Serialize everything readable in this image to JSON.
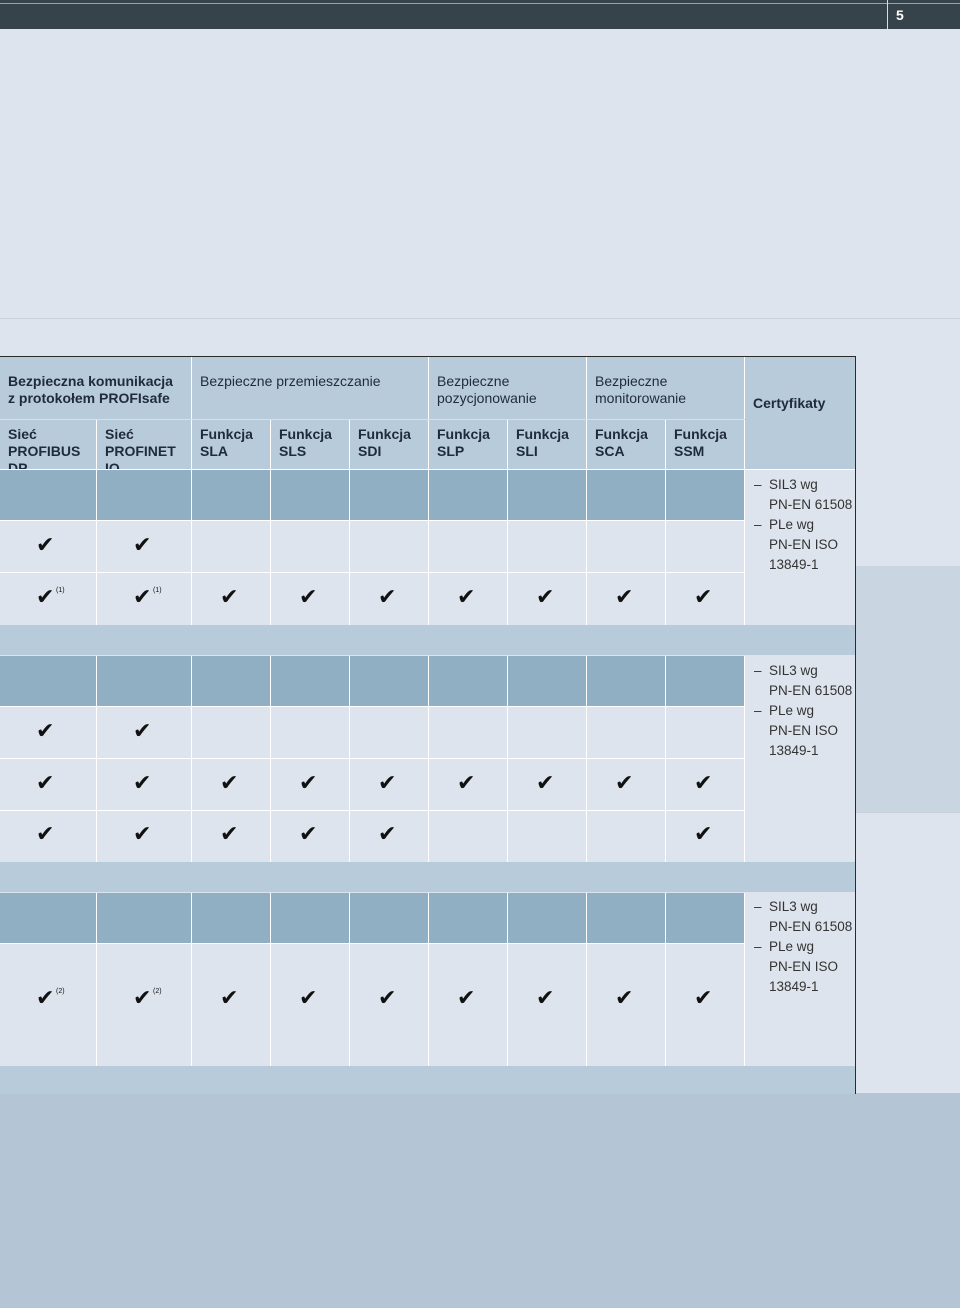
{
  "page": {
    "number": "5"
  },
  "table": {
    "group_headers": [
      {
        "lines": [
          "Bezpieczna komunikacja",
          "z protokołem PROFIsafe"
        ]
      },
      {
        "lines": [
          "Bezpieczne przemieszczanie"
        ]
      },
      {
        "lines": [
          "Bezpieczne",
          "pozycjonowanie"
        ]
      },
      {
        "lines": [
          "Bezpieczne",
          "monitorowanie"
        ]
      },
      {
        "lines": [
          "Certyfikaty"
        ]
      }
    ],
    "columns": [
      {
        "l1": "Sieć",
        "l2": "PROFIBUS DP"
      },
      {
        "l1": "Sieć",
        "l2": "PROFINET IO"
      },
      {
        "l1": "Funkcja",
        "l2": "SLA"
      },
      {
        "l1": "Funkcja",
        "l2": "SLS"
      },
      {
        "l1": "Funkcja",
        "l2": "SDI"
      },
      {
        "l1": "Funkcja",
        "l2": "SLP"
      },
      {
        "l1": "Funkcja",
        "l2": "SLI"
      },
      {
        "l1": "Funkcja",
        "l2": "SCA"
      },
      {
        "l1": "Funkcja",
        "l2": "SSM"
      }
    ],
    "check_glyph": "✔",
    "footnotes": {
      "one": "(1)",
      "two": "(2)"
    },
    "certificate_lines": [
      {
        "dash": "–",
        "text": "SIL3 wg"
      },
      {
        "dash": "",
        "text": "PN-EN 61508"
      },
      {
        "dash": "–",
        "text": "PLe wg"
      },
      {
        "dash": "",
        "text": "PN-EN ISO"
      },
      {
        "dash": "",
        "text": "13849-1"
      }
    ]
  },
  "colors": {
    "top_bar": "#37434b",
    "header_bg": "#b8cbdb",
    "dark_row": "#91afc2",
    "light_row": "#dde4ed",
    "bottom_band": "#b4c6d5"
  }
}
